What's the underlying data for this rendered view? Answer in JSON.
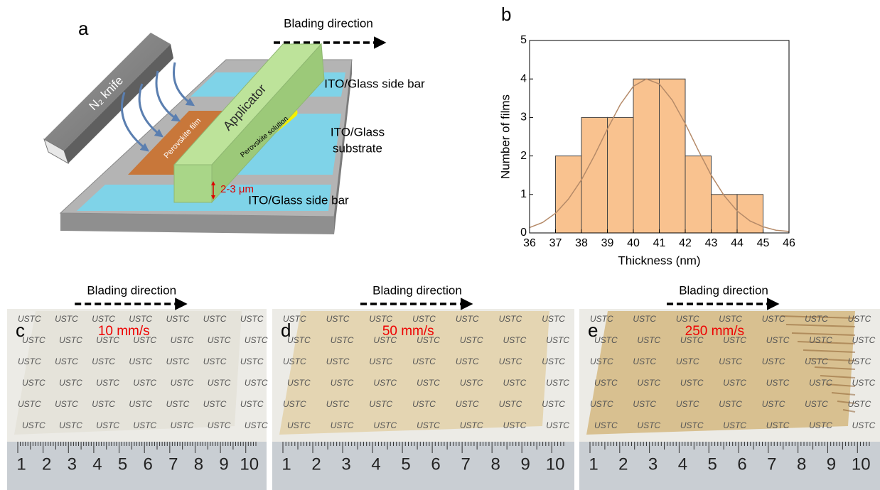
{
  "diagram": {
    "panel_label": "a",
    "direction": "Blading direction",
    "knife": "N₂ knife",
    "applicator": "Applicator",
    "film": "Perovskite film",
    "solution": "Perovskite solution",
    "side_bars": [
      "ITO/Glass side bar",
      "ITO/Glass side bar"
    ],
    "substrate": [
      "ITO/Glass",
      "substrate"
    ],
    "gap": "2-3 μm"
  },
  "chart_data": {
    "type": "histogram",
    "panel_label": "b",
    "xlabel": "Thickness (nm)",
    "ylabel": "Number of films",
    "bins": [
      37,
      38,
      39,
      40,
      41,
      42,
      43,
      44,
      45
    ],
    "values": [
      2,
      3,
      3,
      4,
      4,
      2,
      1,
      1
    ],
    "color": "#f9c28f",
    "xlim": [
      36,
      46
    ],
    "xticks": [
      36,
      37,
      38,
      39,
      40,
      41,
      42,
      43,
      44,
      45,
      46
    ],
    "ylim": [
      0,
      5
    ],
    "yticks": [
      0,
      1,
      2,
      3,
      4,
      5
    ],
    "fit": {
      "color": "#b58a68",
      "x": [
        36,
        36.5,
        37,
        37.5,
        38,
        38.5,
        39,
        39.5,
        40,
        40.5,
        41,
        41.5,
        42,
        42.5,
        43,
        43.5,
        44,
        44.5,
        45,
        45.5,
        46
      ],
      "values": [
        0.14,
        0.27,
        0.51,
        0.88,
        1.38,
        2.01,
        2.7,
        3.34,
        3.81,
        4,
        3.87,
        3.45,
        2.84,
        2.15,
        1.5,
        0.97,
        0.57,
        0.31,
        0.16,
        0.07,
        0.04
      ]
    }
  },
  "photos": {
    "watermark": "USTC",
    "ruler_labels": [
      "1",
      "2",
      "3",
      "4",
      "5",
      "6",
      "7",
      "8",
      "9",
      "10"
    ],
    "panels": [
      {
        "label": "c",
        "speed": "10 mm/s",
        "direction": "Blading direction",
        "film_color": "#e4e2d8"
      },
      {
        "label": "d",
        "speed": "50 mm/s",
        "direction": "Blading direction",
        "film_color": "#e3d3ac"
      },
      {
        "label": "e",
        "speed": "250 mm/s",
        "direction": "Blading direction",
        "film_color": "#d6bb86"
      }
    ]
  }
}
